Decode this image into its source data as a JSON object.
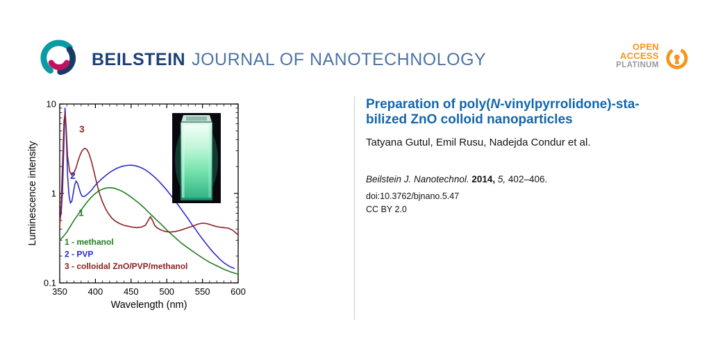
{
  "header": {
    "brand_bold": "BEILSTEIN",
    "brand_rest": "JOURNAL OF NANOTECHNOLOGY",
    "open_access": {
      "line1": "OPEN",
      "line2": "ACCESS",
      "line3": "PLATINUM"
    }
  },
  "article": {
    "title_lines": [
      [
        {
          "t": "Preparation of poly("
        },
        {
          "t": "N",
          "i": true
        },
        {
          "t": "-vinylpyrrolidone)-sta-"
        }
      ],
      [
        {
          "t": "bilized ZnO colloid nanoparticles"
        }
      ]
    ],
    "authors": "Tatyana Gutul, Emil Rusu, Nadejda Condur et al.",
    "citation": [
      {
        "t": "Beilstein J. Nanotechnol. ",
        "i": true
      },
      {
        "t": "2014,",
        "b": true
      },
      {
        "t": " "
      },
      {
        "t": "5,",
        "i": true
      },
      {
        "t": " 402–406."
      }
    ],
    "doi": "doi:10.3762/bjnano.5.47",
    "license": "CC BY 2.0"
  },
  "colors": {
    "brand_blue": "#1b4077",
    "brand_light_blue": "#4d74a6",
    "title_blue": "#1266ad",
    "open_access_orange": "#f7941d",
    "platinum_gray": "#9a9a9a"
  },
  "chart_data": {
    "type": "line",
    "title": "",
    "xlabel": "Wavelength (nm)",
    "ylabel": "Luminescence intensity",
    "xlim": [
      350,
      600
    ],
    "ylim": [
      0.1,
      10
    ],
    "yscale": "log",
    "x_ticks": [
      350,
      400,
      450,
      500,
      550,
      600
    ],
    "y_ticks": [
      0.1,
      1,
      10
    ],
    "legend_position": "inside-bottom-left",
    "inset": {
      "type": "photo",
      "description": "cuvette of colloid glowing green under UV light"
    },
    "series": [
      {
        "name": "1 - methanol",
        "color": "#1f7d1f",
        "points": [
          [
            350,
            0.3
          ],
          [
            355,
            0.33
          ],
          [
            360,
            0.37
          ],
          [
            365,
            0.43
          ],
          [
            370,
            0.5
          ],
          [
            375,
            0.57
          ],
          [
            380,
            0.65
          ],
          [
            385,
            0.74
          ],
          [
            390,
            0.83
          ],
          [
            395,
            0.92
          ],
          [
            400,
            1.0
          ],
          [
            405,
            1.07
          ],
          [
            410,
            1.12
          ],
          [
            415,
            1.15
          ],
          [
            420,
            1.16
          ],
          [
            425,
            1.15
          ],
          [
            430,
            1.12
          ],
          [
            435,
            1.08
          ],
          [
            440,
            1.03
          ],
          [
            445,
            0.97
          ],
          [
            450,
            0.91
          ],
          [
            455,
            0.85
          ],
          [
            460,
            0.79
          ],
          [
            465,
            0.73
          ],
          [
            470,
            0.67
          ],
          [
            475,
            0.61
          ],
          [
            480,
            0.56
          ],
          [
            485,
            0.51
          ],
          [
            490,
            0.47
          ],
          [
            495,
            0.43
          ],
          [
            500,
            0.39
          ],
          [
            510,
            0.33
          ],
          [
            520,
            0.28
          ],
          [
            530,
            0.245
          ],
          [
            540,
            0.215
          ],
          [
            550,
            0.19
          ],
          [
            560,
            0.17
          ],
          [
            570,
            0.155
          ],
          [
            580,
            0.142
          ],
          [
            590,
            0.132
          ],
          [
            600,
            0.125
          ]
        ]
      },
      {
        "name": "2 - PVP",
        "color": "#2a2ac8",
        "points": [
          [
            350,
            0.5
          ],
          [
            352,
            0.6
          ],
          [
            354,
            1.1
          ],
          [
            356,
            4.0
          ],
          [
            357.5,
            9.0
          ],
          [
            359,
            5.0
          ],
          [
            361,
            1.6
          ],
          [
            363,
            0.95
          ],
          [
            365,
            0.78
          ],
          [
            367,
            0.82
          ],
          [
            369,
            1.0
          ],
          [
            371,
            1.25
          ],
          [
            373,
            1.38
          ],
          [
            375,
            1.3
          ],
          [
            377,
            1.15
          ],
          [
            379,
            1.02
          ],
          [
            381,
            0.94
          ],
          [
            383,
            0.92
          ],
          [
            386,
            0.94
          ],
          [
            390,
            1.0
          ],
          [
            395,
            1.1
          ],
          [
            400,
            1.24
          ],
          [
            405,
            1.36
          ],
          [
            410,
            1.48
          ],
          [
            415,
            1.6
          ],
          [
            420,
            1.72
          ],
          [
            425,
            1.82
          ],
          [
            430,
            1.91
          ],
          [
            435,
            1.98
          ],
          [
            440,
            2.03
          ],
          [
            445,
            2.06
          ],
          [
            450,
            2.07
          ],
          [
            455,
            2.05
          ],
          [
            460,
            2.0
          ],
          [
            465,
            1.93
          ],
          [
            470,
            1.83
          ],
          [
            475,
            1.72
          ],
          [
            480,
            1.6
          ],
          [
            485,
            1.47
          ],
          [
            490,
            1.34
          ],
          [
            495,
            1.21
          ],
          [
            500,
            1.09
          ],
          [
            505,
            0.97
          ],
          [
            510,
            0.86
          ],
          [
            515,
            0.76
          ],
          [
            520,
            0.67
          ],
          [
            525,
            0.59
          ],
          [
            530,
            0.52
          ],
          [
            535,
            0.45
          ],
          [
            540,
            0.4
          ],
          [
            545,
            0.35
          ],
          [
            550,
            0.31
          ],
          [
            555,
            0.275
          ],
          [
            560,
            0.245
          ],
          [
            565,
            0.22
          ],
          [
            570,
            0.2
          ],
          [
            575,
            0.182
          ],
          [
            580,
            0.168
          ],
          [
            585,
            0.158
          ],
          [
            590,
            0.15
          ],
          [
            595,
            0.145
          ]
        ]
      },
      {
        "name": "3 - colloidal ZnO/PVP/methanol",
        "color": "#8b1f1f",
        "points": [
          [
            350,
            0.42
          ],
          [
            352,
            0.75
          ],
          [
            354,
            2.2
          ],
          [
            356,
            6.5
          ],
          [
            357.5,
            7.8
          ],
          [
            359,
            5.5
          ],
          [
            361,
            2.6
          ],
          [
            364,
            1.75
          ],
          [
            367,
            1.6
          ],
          [
            370,
            1.7
          ],
          [
            373,
            1.95
          ],
          [
            376,
            2.35
          ],
          [
            379,
            2.75
          ],
          [
            382,
            3.05
          ],
          [
            385,
            3.2
          ],
          [
            388,
            3.1
          ],
          [
            391,
            2.8
          ],
          [
            394,
            2.35
          ],
          [
            397,
            1.9
          ],
          [
            400,
            1.5
          ],
          [
            403,
            1.2
          ],
          [
            406,
            0.98
          ],
          [
            410,
            0.8
          ],
          [
            414,
            0.68
          ],
          [
            418,
            0.6
          ],
          [
            423,
            0.53
          ],
          [
            428,
            0.49
          ],
          [
            434,
            0.46
          ],
          [
            440,
            0.44
          ],
          [
            446,
            0.43
          ],
          [
            452,
            0.42
          ],
          [
            458,
            0.415
          ],
          [
            464,
            0.42
          ],
          [
            470,
            0.44
          ],
          [
            474,
            0.5
          ],
          [
            477,
            0.55
          ],
          [
            480,
            0.5
          ],
          [
            483,
            0.44
          ],
          [
            487,
            0.41
          ],
          [
            492,
            0.39
          ],
          [
            498,
            0.375
          ],
          [
            505,
            0.37
          ],
          [
            512,
            0.375
          ],
          [
            520,
            0.39
          ],
          [
            528,
            0.41
          ],
          [
            536,
            0.43
          ],
          [
            544,
            0.455
          ],
          [
            550,
            0.465
          ],
          [
            556,
            0.46
          ],
          [
            562,
            0.445
          ],
          [
            568,
            0.43
          ],
          [
            574,
            0.42
          ],
          [
            580,
            0.415
          ],
          [
            586,
            0.41
          ],
          [
            592,
            0.39
          ],
          [
            598,
            0.355
          ],
          [
            600,
            0.345
          ]
        ]
      }
    ],
    "curve_labels": [
      {
        "text": "3",
        "x": 381,
        "y": 4.8,
        "color": "#8b1f1f"
      },
      {
        "text": "2",
        "x": 368.5,
        "y": 1.45,
        "color": "#2a2ac8"
      },
      {
        "text": "1",
        "x": 380,
        "y": 0.56,
        "color": "#1f7d1f"
      }
    ]
  }
}
